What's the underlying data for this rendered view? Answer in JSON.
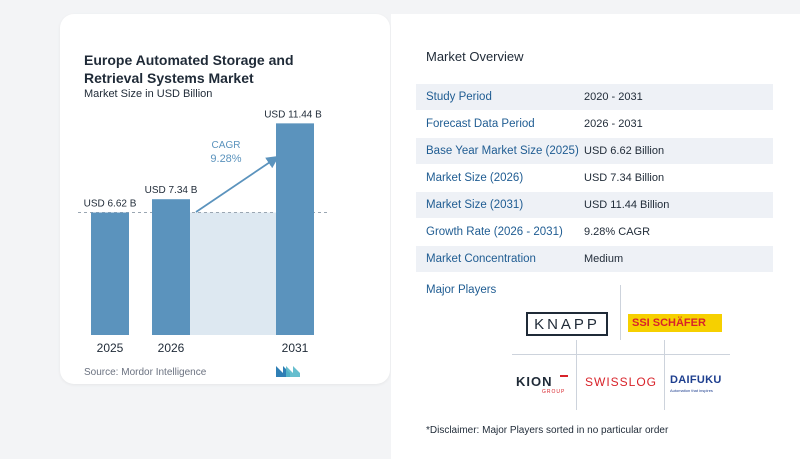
{
  "chart_title": "Europe Automated Storage and Retrieval Systems Market",
  "chart_subtitle": "Market Size in USD Billion",
  "source": "Source: Mordor Intelligence",
  "chart_data": {
    "type": "bar",
    "title": "Europe Automated Storage and Retrieval Systems Market",
    "subtitle": "Market Size in USD Billion",
    "categories": [
      "2025",
      "2026",
      "2031"
    ],
    "values": [
      6.62,
      7.34,
      11.44
    ],
    "data_labels": [
      "USD 6.62 B",
      "USD 7.34 B",
      "USD 11.44 B"
    ],
    "cagr_label": "CAGR",
    "cagr_value": "9.28%",
    "ylim": [
      0,
      12
    ],
    "bar_color": "#5b93bd",
    "shade_color": "#dde8f1"
  },
  "overview": {
    "title": "Market Overview",
    "rows": [
      {
        "key": "Study Period",
        "value": "2020 - 2031"
      },
      {
        "key": "Forecast Data Period",
        "value": "2026 - 2031"
      },
      {
        "key": "Base Year Market Size (2025)",
        "value": "USD 6.62 Billion"
      },
      {
        "key": "Market Size (2026)",
        "value": "USD 7.34 Billion"
      },
      {
        "key": "Market Size (2031)",
        "value": "USD 11.44 Billion"
      },
      {
        "key": "Growth Rate (2026 - 2031)",
        "value": "9.28% CAGR"
      },
      {
        "key": "Market Concentration",
        "value": "Medium"
      }
    ]
  },
  "players": {
    "title": "Major Players",
    "knapp": "KNAPP",
    "ssi_prefix": "SSI",
    "ssi_name": "SCHÄFER",
    "kion": "KION",
    "kion_sub": "GROUP",
    "swisslog": "SWISSLOG",
    "daifuku": "DAIFUKU",
    "daifuku_sub": "Automation that inspires"
  },
  "disclaimer": "*Disclaimer: Major Players sorted in no particular order"
}
